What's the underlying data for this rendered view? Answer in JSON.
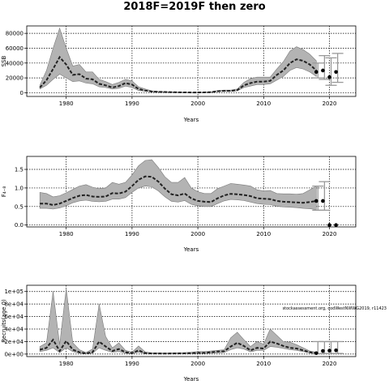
{
  "title": "2018F=2019F then zero",
  "chart_data": [
    {
      "type": "line",
      "ylabel": "SSB",
      "xlabel": "Years",
      "xlim": [
        1974,
        2024
      ],
      "ylim": [
        -5000,
        90000
      ],
      "xticks": [
        1980,
        1990,
        2000,
        2010,
        2020
      ],
      "yticks": [
        0,
        20000,
        40000,
        60000,
        80000
      ],
      "ytick_labels": [
        "0",
        "20000",
        "40000",
        "60000",
        "80000"
      ],
      "grid": true,
      "x": [
        1976,
        1977,
        1978,
        1979,
        1980,
        1981,
        1982,
        1983,
        1984,
        1985,
        1986,
        1987,
        1988,
        1989,
        1990,
        1991,
        1992,
        1993,
        1994,
        1995,
        1996,
        1997,
        1998,
        1999,
        2000,
        2001,
        2002,
        2003,
        2004,
        2005,
        2006,
        2007,
        2008,
        2009,
        2010,
        2011,
        2012,
        2013,
        2014,
        2015,
        2016,
        2017,
        2018
      ],
      "estimate": [
        7000,
        17000,
        32000,
        48000,
        38000,
        24000,
        25000,
        19000,
        18000,
        12000,
        10000,
        7000,
        9000,
        13000,
        11000,
        5000,
        3000,
        1500,
        1200,
        1000,
        800,
        600,
        500,
        400,
        400,
        500,
        800,
        2000,
        2500,
        2500,
        3500,
        10000,
        13000,
        15000,
        15000,
        16000,
        24000,
        30000,
        40000,
        45000,
        43000,
        38000,
        30000
      ],
      "lower": [
        5000,
        10000,
        18000,
        25000,
        20000,
        15000,
        16000,
        13000,
        12000,
        8000,
        7000,
        5000,
        6000,
        9000,
        7000,
        3000,
        2000,
        1000,
        800,
        600,
        500,
        400,
        300,
        250,
        250,
        300,
        500,
        1500,
        1800,
        1800,
        2500,
        7000,
        9000,
        11000,
        11000,
        12000,
        17000,
        22000,
        30000,
        34000,
        32000,
        28000,
        22000
      ],
      "upper": [
        10000,
        30000,
        60000,
        87000,
        60000,
        36000,
        38000,
        28000,
        28000,
        18000,
        15000,
        11000,
        14000,
        18000,
        16000,
        8000,
        5000,
        2500,
        1800,
        1500,
        1200,
        900,
        800,
        600,
        600,
        800,
        1200,
        3000,
        3500,
        3500,
        5000,
        14000,
        19000,
        21000,
        21000,
        21000,
        32000,
        42000,
        56000,
        62000,
        58000,
        52000,
        43000
      ],
      "projection_points": {
        "x": [
          2018,
          2019,
          2020,
          2021
        ],
        "y": [
          28000,
          30000,
          21000,
          28000
        ]
      },
      "projection_intervals": [
        {
          "x": 2018,
          "low": 20000,
          "high": 40000
        },
        {
          "x": 2019,
          "low": 18000,
          "high": 50000
        },
        {
          "x": 2020,
          "low": 10000,
          "high": 47000
        },
        {
          "x": 2021,
          "low": 14000,
          "high": 53000
        }
      ]
    },
    {
      "type": "line",
      "ylabel": "F₄₋₈",
      "xlabel": "Years",
      "xlim": [
        1974,
        2024
      ],
      "ylim": [
        -0.05,
        1.85
      ],
      "xticks": [
        1980,
        1990,
        2000,
        2010,
        2020
      ],
      "yticks": [
        0,
        0.5,
        1.0,
        1.5
      ],
      "ytick_labels": [
        "0.0",
        "0.5",
        "1.0",
        "1.5"
      ],
      "grid": true,
      "x": [
        1976,
        1977,
        1978,
        1979,
        1980,
        1981,
        1982,
        1983,
        1984,
        1985,
        1986,
        1987,
        1988,
        1989,
        1990,
        1991,
        1992,
        1993,
        1994,
        1995,
        1996,
        1997,
        1998,
        1999,
        2000,
        2001,
        2002,
        2003,
        2004,
        2005,
        2006,
        2007,
        2008,
        2009,
        2010,
        2011,
        2012,
        2013,
        2014,
        2015,
        2016,
        2017,
        2018
      ],
      "estimate": [
        0.58,
        0.58,
        0.54,
        0.58,
        0.65,
        0.73,
        0.79,
        0.81,
        0.77,
        0.76,
        0.77,
        0.86,
        0.85,
        0.9,
        1.05,
        1.22,
        1.31,
        1.3,
        1.17,
        0.98,
        0.83,
        0.8,
        0.85,
        0.72,
        0.65,
        0.63,
        0.62,
        0.72,
        0.8,
        0.84,
        0.83,
        0.81,
        0.78,
        0.72,
        0.71,
        0.7,
        0.65,
        0.63,
        0.62,
        0.61,
        0.6,
        0.62,
        0.65
      ],
      "lower": [
        0.45,
        0.45,
        0.43,
        0.46,
        0.52,
        0.6,
        0.65,
        0.67,
        0.64,
        0.63,
        0.64,
        0.7,
        0.7,
        0.74,
        0.88,
        1.0,
        1.05,
        1.03,
        0.92,
        0.76,
        0.64,
        0.62,
        0.66,
        0.56,
        0.52,
        0.5,
        0.5,
        0.58,
        0.65,
        0.69,
        0.68,
        0.66,
        0.62,
        0.58,
        0.56,
        0.55,
        0.51,
        0.49,
        0.48,
        0.47,
        0.45,
        0.44,
        0.42
      ],
      "upper": [
        0.88,
        0.85,
        0.76,
        0.79,
        0.87,
        0.96,
        1.05,
        1.09,
        1.02,
        0.98,
        1.0,
        1.15,
        1.1,
        1.15,
        1.35,
        1.6,
        1.74,
        1.76,
        1.55,
        1.3,
        1.15,
        1.15,
        1.28,
        1.0,
        0.9,
        0.85,
        0.85,
        0.98,
        1.05,
        1.12,
        1.1,
        1.08,
        1.05,
        0.95,
        0.92,
        0.93,
        0.85,
        0.84,
        0.84,
        0.83,
        0.85,
        0.95,
        1.05
      ],
      "projection_points": {
        "x": [
          2018,
          2019,
          2020,
          2021
        ],
        "y": [
          0.65,
          0.65,
          0.0,
          0.0
        ]
      },
      "projection_intervals": [
        {
          "x": 2018,
          "low": 0.4,
          "high": 1.05
        },
        {
          "x": 2019,
          "low": 0.4,
          "high": 1.17
        }
      ]
    },
    {
      "type": "line",
      "ylabel": "Recruits(age 0)",
      "xlabel": "Years",
      "xlim": [
        1974,
        2024
      ],
      "ylim": [
        -4000,
        110000
      ],
      "xticks": [
        1980,
        1990,
        2000,
        2010,
        2020
      ],
      "yticks": [
        0,
        20000,
        40000,
        60000,
        80000,
        100000
      ],
      "ytick_labels": [
        "0e+00",
        "2e+04",
        "4e+04",
        "6e+04",
        "8e+04",
        "1e+05"
      ],
      "grid": true,
      "annotation": "stockassessment.org, codWestNWWG2019, r11423",
      "x": [
        1976,
        1977,
        1978,
        1979,
        1980,
        1981,
        1982,
        1983,
        1984,
        1985,
        1986,
        1987,
        1988,
        1989,
        1990,
        1991,
        1992,
        1993,
        1994,
        1995,
        1996,
        1997,
        1998,
        1999,
        2000,
        2001,
        2002,
        2003,
        2004,
        2005,
        2006,
        2007,
        2008,
        2009,
        2010,
        2011,
        2012,
        2013,
        2014,
        2015,
        2016,
        2017,
        2018
      ],
      "estimate": [
        7000,
        10000,
        23000,
        5000,
        21000,
        7000,
        3000,
        1000,
        3000,
        20000,
        12000,
        5000,
        8000,
        3000,
        1500,
        6000,
        1500,
        1000,
        1000,
        800,
        1000,
        1000,
        1200,
        1500,
        2000,
        2000,
        3000,
        4000,
        4500,
        12000,
        18000,
        13000,
        6000,
        10000,
        9000,
        20000,
        17000,
        13000,
        10000,
        9000,
        6000,
        3000,
        1500
      ],
      "lower": [
        4000,
        6000,
        10000,
        2500,
        10000,
        4000,
        1500,
        500,
        1500,
        10000,
        6000,
        3000,
        4000,
        1500,
        800,
        3000,
        800,
        500,
        500,
        400,
        500,
        500,
        600,
        700,
        1000,
        1000,
        1500,
        2000,
        2500,
        7000,
        10000,
        8000,
        3500,
        6000,
        6000,
        12000,
        11000,
        9000,
        7000,
        6000,
        4000,
        1800,
        800
      ],
      "upper": [
        12000,
        18000,
        100000,
        15000,
        105000,
        18000,
        7000,
        2500,
        8000,
        80000,
        28000,
        10000,
        18000,
        6000,
        3000,
        13000,
        3500,
        2000,
        2000,
        1800,
        2000,
        2200,
        2500,
        3000,
        4000,
        4000,
        5000,
        6000,
        7000,
        26000,
        35000,
        23000,
        12000,
        20000,
        16000,
        40000,
        30000,
        20000,
        19000,
        15000,
        10000,
        5000,
        3000
      ],
      "projection_points": {
        "x": [
          2018,
          2019,
          2020,
          2021
        ],
        "y": [
          1500,
          5000,
          5500,
          6000
        ]
      },
      "projection_intervals": [
        {
          "x": 2018,
          "low": 500,
          "high": 20000
        },
        {
          "x": 2019,
          "low": 1000,
          "high": 20000
        },
        {
          "x": 2020,
          "low": 1000,
          "high": 20000
        },
        {
          "x": 2021,
          "low": 1000,
          "high": 20000
        }
      ]
    }
  ]
}
